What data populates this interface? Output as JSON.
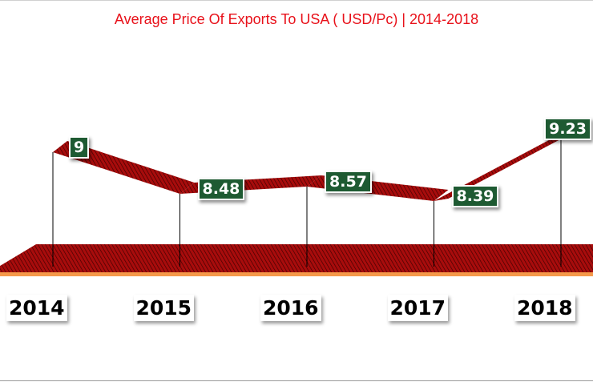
{
  "chart_data": {
    "type": "line",
    "title": "Average Price Of Exports To USA ( USD/Pc) | 2014-2018",
    "categories": [
      "2014",
      "2015",
      "2016",
      "2017",
      "2018"
    ],
    "values": [
      9,
      8.48,
      8.57,
      8.39,
      9.23
    ],
    "data_labels": [
      "9",
      "8.48",
      "8.57",
      "8.39",
      "9.23"
    ],
    "xlabel": "",
    "ylabel": "",
    "grid": false,
    "legend": "none",
    "colors": {
      "ribbon": "#8b0000",
      "floor": "#a50d0d",
      "floor_edge": "#f5994a",
      "label_bg": "#1e5a32",
      "title": "#e8111a"
    }
  }
}
